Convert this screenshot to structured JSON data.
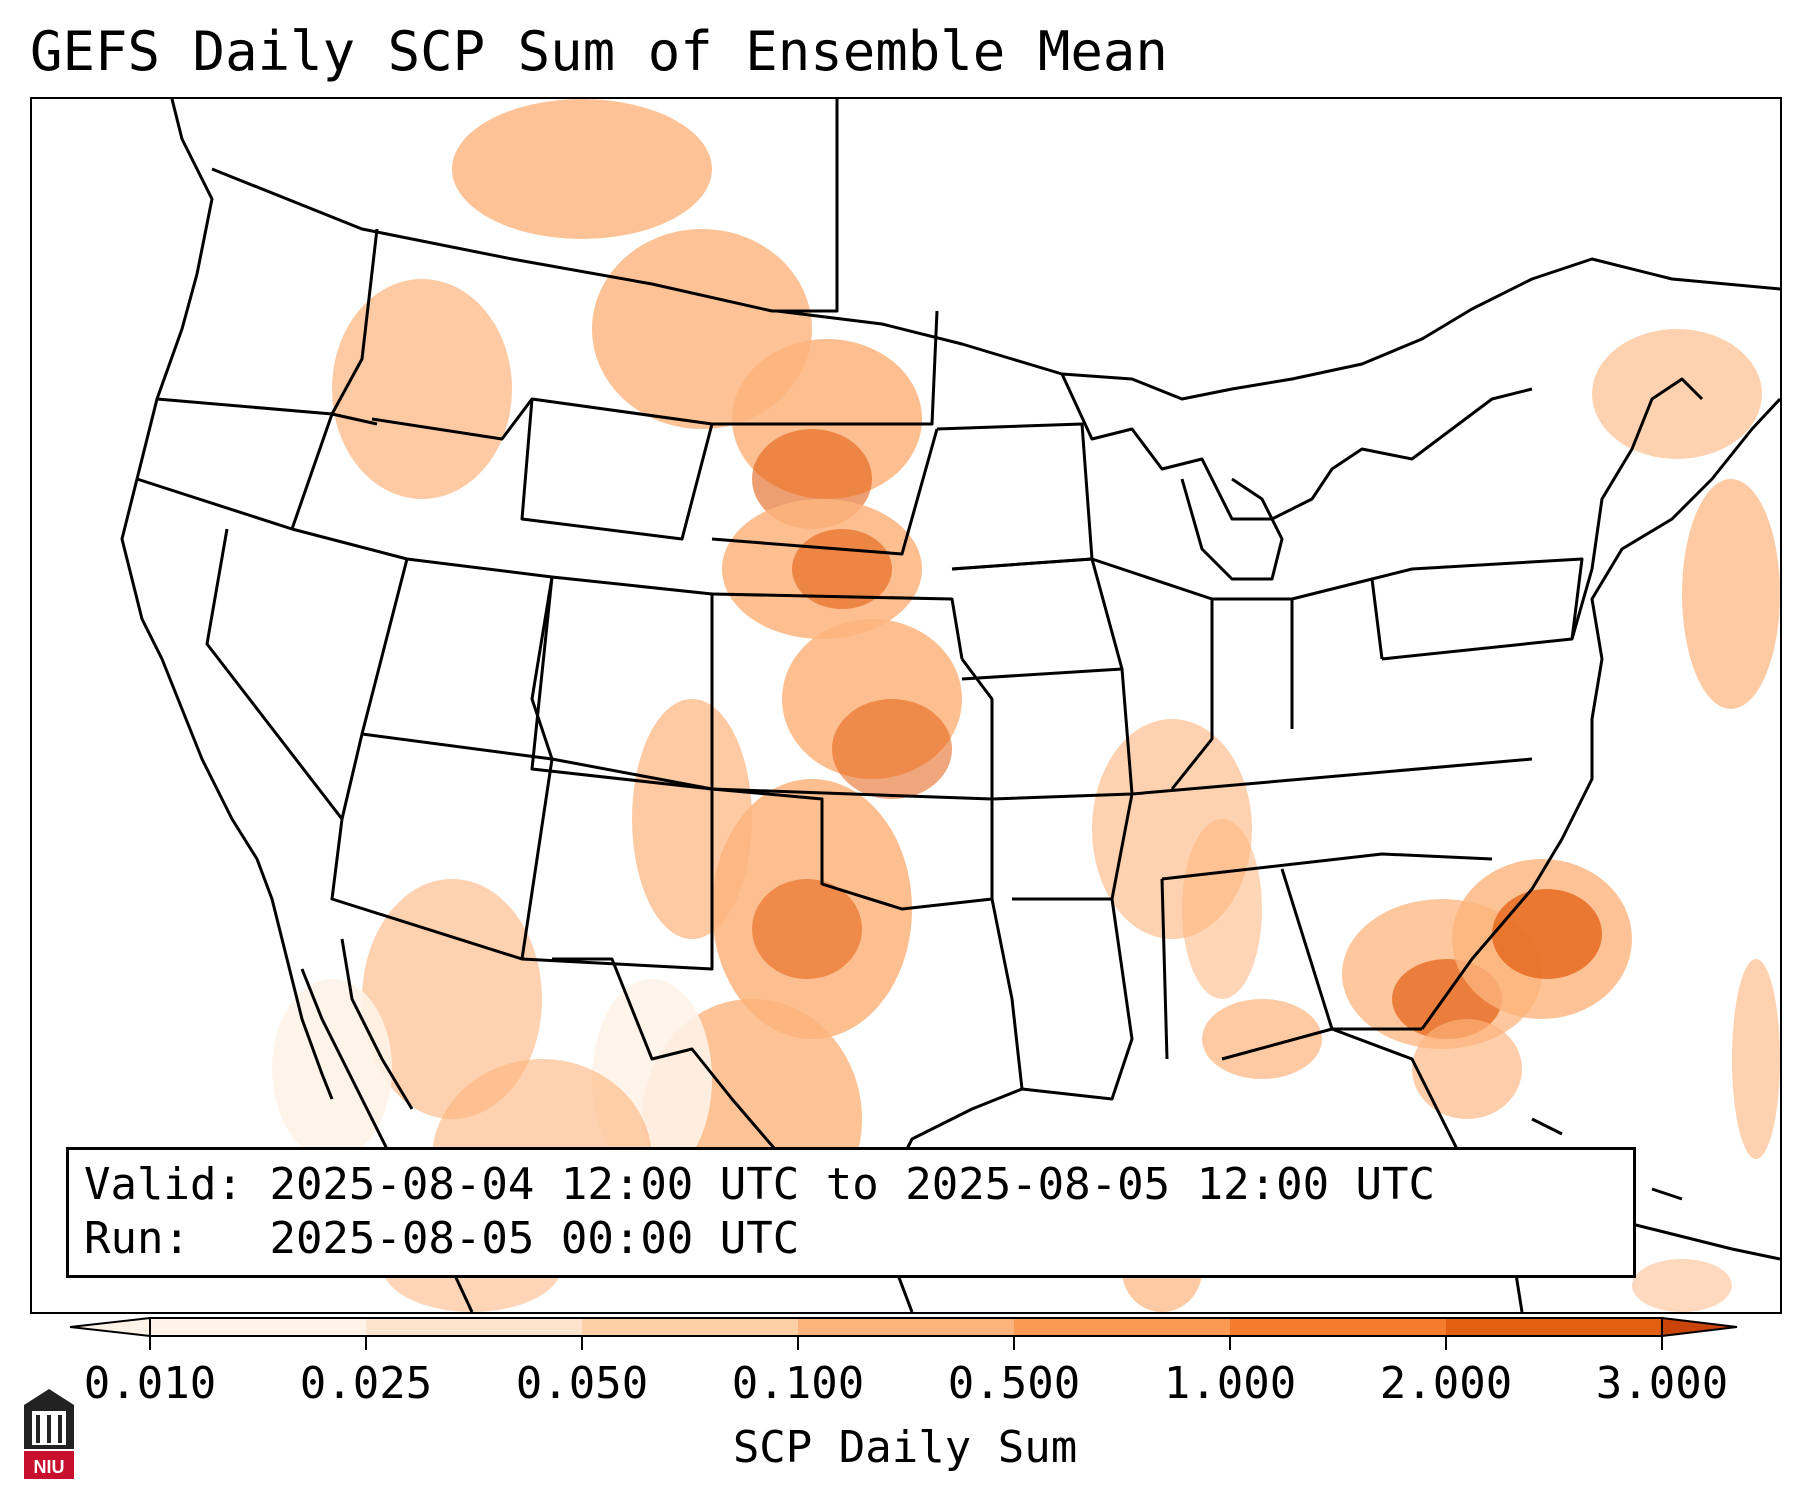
{
  "title": "GEFS Daily SCP Sum of Ensemble Mean",
  "valid_label": "Valid:",
  "valid_text": "2025-08-04 12:00 UTC to 2025-08-05 12:00 UTC",
  "run_label": "Run:",
  "run_text": "2025-08-05 00:00 UTC",
  "colorbar": {
    "label": "SCP Daily Sum",
    "ticks": [
      "0.010",
      "0.025",
      "0.050",
      "0.100",
      "0.500",
      "1.000",
      "2.000",
      "3.000"
    ],
    "colors": [
      "#fff3e8",
      "#fde4cc",
      "#fdd0a6",
      "#fdb47c",
      "#fb9a52",
      "#f47c2c",
      "#e35f12",
      "#c84408"
    ],
    "extend": "both"
  },
  "logo_text": "NIU",
  "colors": {
    "border": "#000000",
    "background": "#ffffff",
    "field_low": "#fff3e8",
    "field_mid": "#fdb47c",
    "field_high": "#e35f12"
  }
}
